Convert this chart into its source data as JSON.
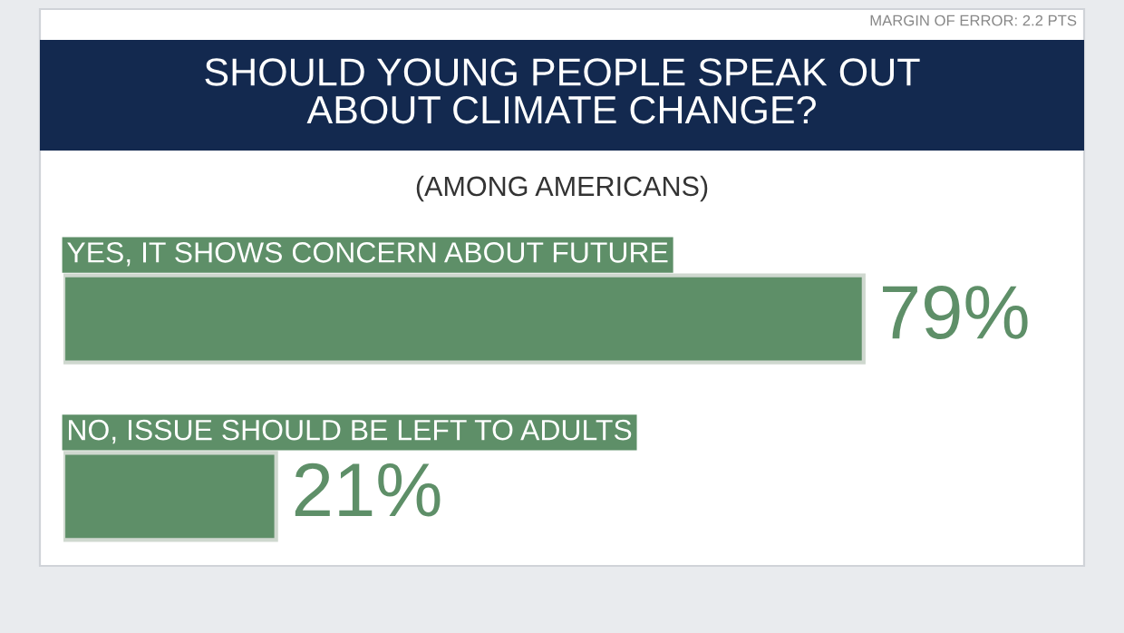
{
  "chart_data": {
    "type": "bar",
    "orientation": "horizontal",
    "title": "SHOULD YOUNG PEOPLE SPEAK OUT\nABOUT CLIMATE CHANGE?",
    "subtitle": "(AMONG AMERICANS)",
    "annotations": [
      "MARGIN OF ERROR: 2.2 PTS"
    ],
    "categories": [
      "YES, IT SHOWS CONCERN ABOUT FUTURE",
      "NO, ISSUE SHOULD BE LEFT TO ADULTS"
    ],
    "values": [
      79,
      21
    ],
    "value_labels": [
      "79%",
      "21%"
    ],
    "color": "#5e8f68"
  }
}
